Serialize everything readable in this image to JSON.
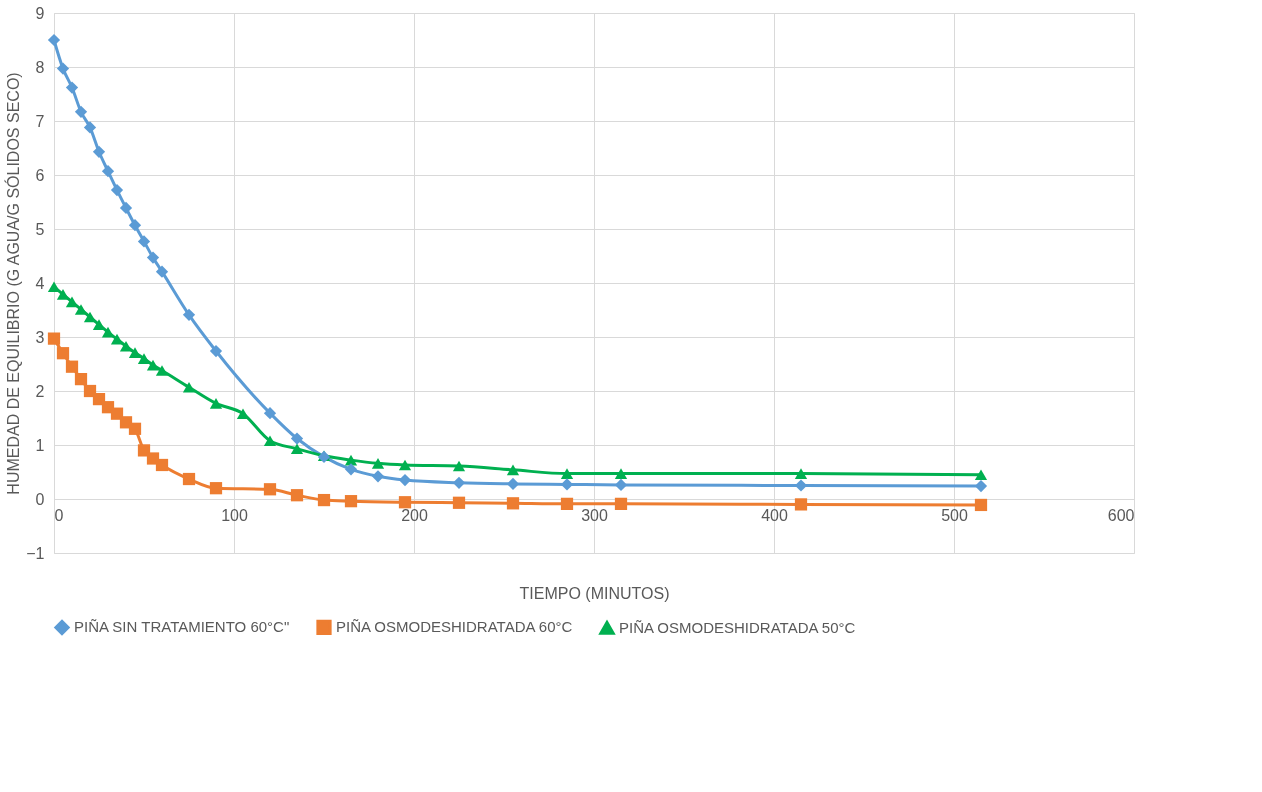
{
  "chart_data": {
    "type": "line",
    "xlabel": "TIEMPO (MINUTOS)",
    "ylabel": "HUMEDAD DE EQUILIBRIO (G AGUA/G SÓLIDOS SECO)",
    "xlim": [
      0,
      600
    ],
    "xticks": [
      0,
      100,
      200,
      300,
      400,
      500,
      600
    ],
    "ylim": [
      -1,
      9
    ],
    "yticks": [
      -1,
      0,
      1,
      2,
      3,
      4,
      5,
      6,
      7,
      8,
      9
    ],
    "grid": true,
    "legend": "bottom",
    "series": [
      {
        "name": "PIÑA SIN TRATAMIENTO 60°C\"",
        "color": "#5b9bd5",
        "marker": "diamond",
        "x": [
          0,
          5,
          10,
          15,
          20,
          25,
          30,
          35,
          40,
          45,
          50,
          55,
          60,
          75,
          90,
          120,
          135,
          150,
          165,
          180,
          195,
          225,
          255,
          285,
          315,
          415,
          515
        ],
        "values": [
          8.5,
          7.97,
          7.62,
          7.17,
          6.88,
          6.43,
          6.07,
          5.72,
          5.39,
          5.07,
          4.77,
          4.47,
          4.21,
          3.41,
          2.74,
          1.59,
          1.12,
          0.78,
          0.55,
          0.42,
          0.35,
          0.3,
          0.28,
          0.27,
          0.26,
          0.25,
          0.24
        ]
      },
      {
        "name": "PIÑA OSMODESHIDRATADA 60°C",
        "color": "#ed7d31",
        "marker": "square",
        "x": [
          0,
          5,
          10,
          15,
          20,
          25,
          30,
          35,
          40,
          45,
          50,
          55,
          60,
          75,
          90,
          120,
          135,
          150,
          165,
          195,
          225,
          255,
          285,
          315,
          415,
          515
        ],
        "values": [
          2.97,
          2.7,
          2.45,
          2.22,
          2.0,
          1.85,
          1.7,
          1.58,
          1.42,
          1.3,
          0.9,
          0.75,
          0.63,
          0.37,
          0.2,
          0.18,
          0.07,
          -0.02,
          -0.04,
          -0.06,
          -0.07,
          -0.08,
          -0.09,
          -0.09,
          -0.1,
          -0.11
        ]
      },
      {
        "name": "PIÑA OSMODESHIDRATADA 50°C",
        "color": "#00b050",
        "marker": "triangle",
        "x": [
          0,
          5,
          10,
          15,
          20,
          25,
          30,
          35,
          40,
          45,
          50,
          55,
          60,
          75,
          90,
          105,
          120,
          135,
          150,
          165,
          180,
          195,
          225,
          255,
          285,
          315,
          415,
          515
        ],
        "values": [
          3.93,
          3.79,
          3.65,
          3.51,
          3.37,
          3.23,
          3.09,
          2.96,
          2.83,
          2.71,
          2.6,
          2.48,
          2.38,
          2.07,
          1.77,
          1.58,
          1.08,
          0.93,
          0.8,
          0.72,
          0.66,
          0.63,
          0.61,
          0.54,
          0.47,
          0.47,
          0.47,
          0.45
        ]
      }
    ]
  }
}
